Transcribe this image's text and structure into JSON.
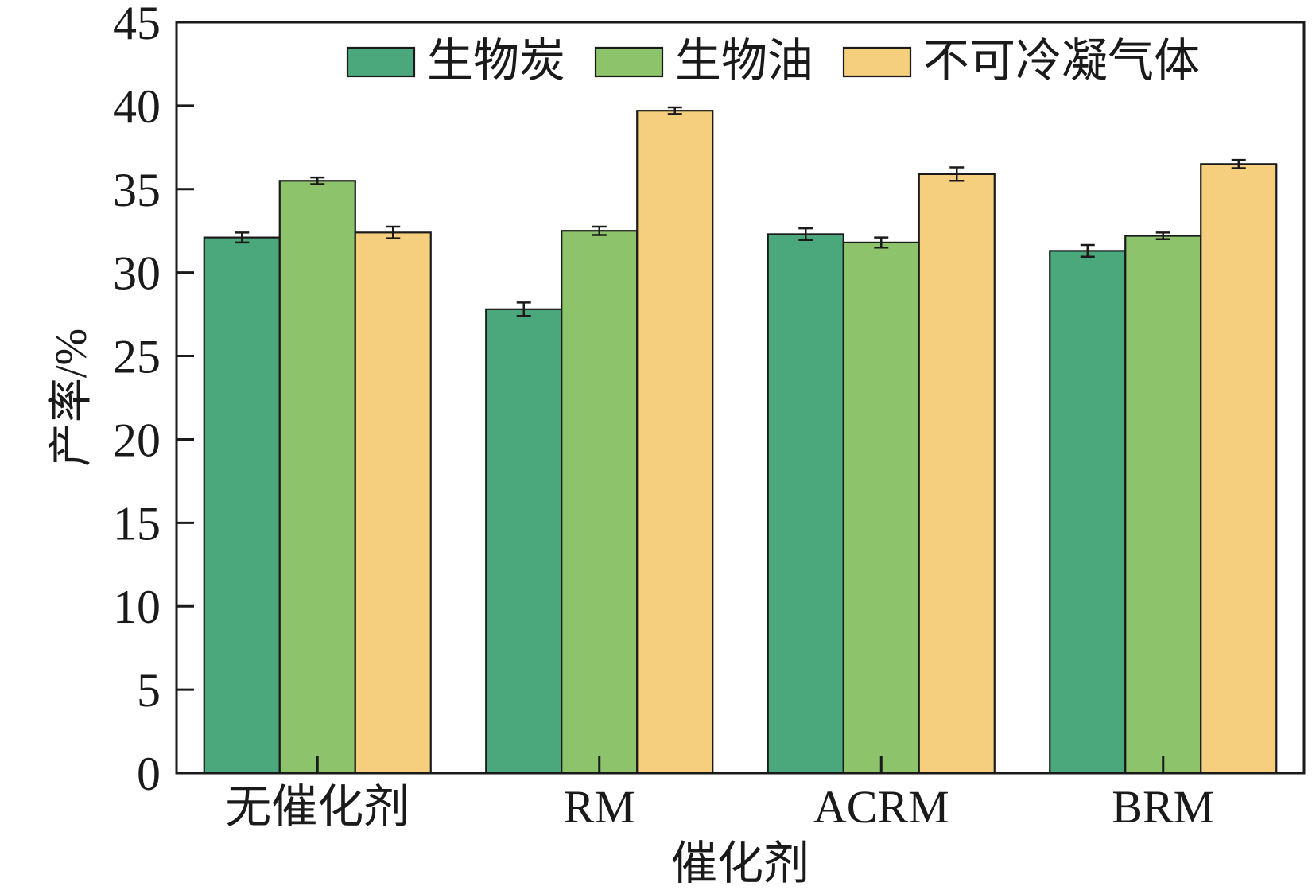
{
  "chart_data": {
    "type": "bar",
    "title": "",
    "xlabel": "催化剂",
    "ylabel": "产率/%",
    "categories": [
      "无催化剂",
      "RM",
      "ACRM",
      "BRM"
    ],
    "ylim": [
      0,
      45
    ],
    "yticks": [
      0,
      5,
      10,
      15,
      20,
      25,
      30,
      35,
      40,
      45
    ],
    "grid": false,
    "legend_position": "top",
    "series": [
      {
        "name": "生物炭",
        "color": "#4aa87c",
        "values": [
          32.1,
          27.8,
          32.3,
          31.3
        ],
        "errors": [
          0.3,
          0.4,
          0.35,
          0.35
        ]
      },
      {
        "name": "生物油",
        "color": "#8cc36b",
        "values": [
          35.5,
          32.5,
          31.8,
          32.2
        ],
        "errors": [
          0.2,
          0.25,
          0.3,
          0.2
        ]
      },
      {
        "name": "不可冷凝气体",
        "color": "#f5cf7d",
        "values": [
          32.4,
          39.7,
          35.9,
          36.5
        ],
        "errors": [
          0.35,
          0.2,
          0.4,
          0.25
        ]
      }
    ]
  }
}
